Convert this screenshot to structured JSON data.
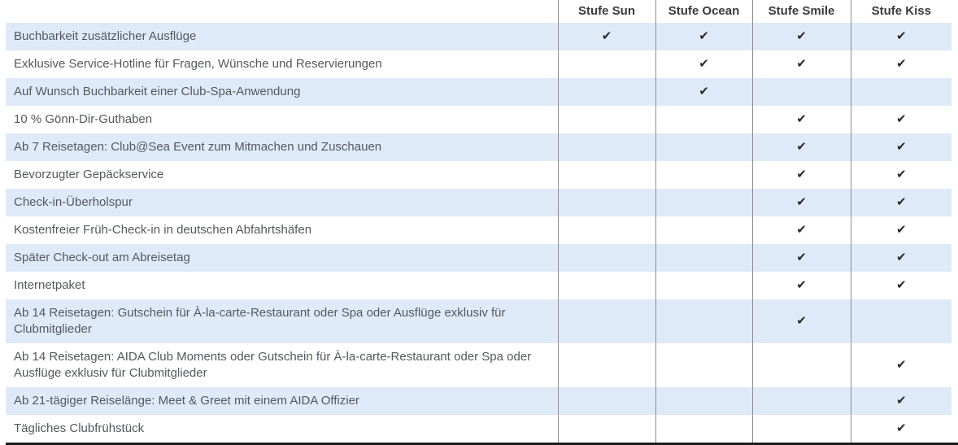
{
  "table": {
    "feature_header": "",
    "columns": [
      "Stufe Sun",
      "Stufe Ocean",
      "Stufe Smile",
      "Stufe Kiss"
    ],
    "check_glyph": "✔",
    "rows": [
      {
        "label": "Buchbarkeit zusätzlicher Ausflüge",
        "checks": [
          true,
          true,
          true,
          true
        ]
      },
      {
        "label": "Exklusive Service-Hotline für Fragen, Wünsche und Reservierungen",
        "checks": [
          false,
          true,
          true,
          true
        ]
      },
      {
        "label": "Auf Wunsch Buchbarkeit einer Club-Spa-Anwendung",
        "checks": [
          false,
          true,
          false,
          false
        ]
      },
      {
        "label": "10 % Gönn-Dir-Guthaben",
        "checks": [
          false,
          false,
          true,
          true
        ]
      },
      {
        "label": "Ab 7 Reisetagen: Club@Sea Event zum Mitmachen und Zuschauen",
        "checks": [
          false,
          false,
          true,
          true
        ]
      },
      {
        "label": "Bevorzugter Gepäckservice",
        "checks": [
          false,
          false,
          true,
          true
        ]
      },
      {
        "label": "Check-in-Überholspur",
        "checks": [
          false,
          false,
          true,
          true
        ]
      },
      {
        "label": "Kostenfreier Früh-Check-in in deutschen Abfahrtshäfen",
        "checks": [
          false,
          false,
          true,
          true
        ]
      },
      {
        "label": "Später Check-out am Abreisetag",
        "checks": [
          false,
          false,
          true,
          true
        ]
      },
      {
        "label": "Internetpaket",
        "checks": [
          false,
          false,
          true,
          true
        ]
      },
      {
        "label": "Ab 14 Reisetagen: Gutschein für À-la-carte-Restaurant oder Spa oder Ausflüge exklusiv für Clubmitglieder",
        "checks": [
          false,
          false,
          true,
          false
        ]
      },
      {
        "label": "Ab 14 Reisetagen: AIDA Club Moments oder Gutschein für À-la-carte-Restaurant oder Spa oder Ausflüge exklusiv für Clubmitglieder",
        "checks": [
          false,
          false,
          false,
          true
        ]
      },
      {
        "label": "Ab 21-tägiger Reiselänge: Meet & Greet mit einem AIDA Offizier",
        "checks": [
          false,
          false,
          false,
          true
        ]
      },
      {
        "label": "Tägliches Clubfrühstück",
        "checks": [
          false,
          false,
          false,
          true
        ]
      }
    ]
  },
  "colors": {
    "stripe": "#deeaf7",
    "grid": "#8e8e8e",
    "check": "#2a2a2a",
    "label_text": "#55585e",
    "header_text": "#3b3b3e",
    "bottom_border": "#1c1c1c"
  }
}
